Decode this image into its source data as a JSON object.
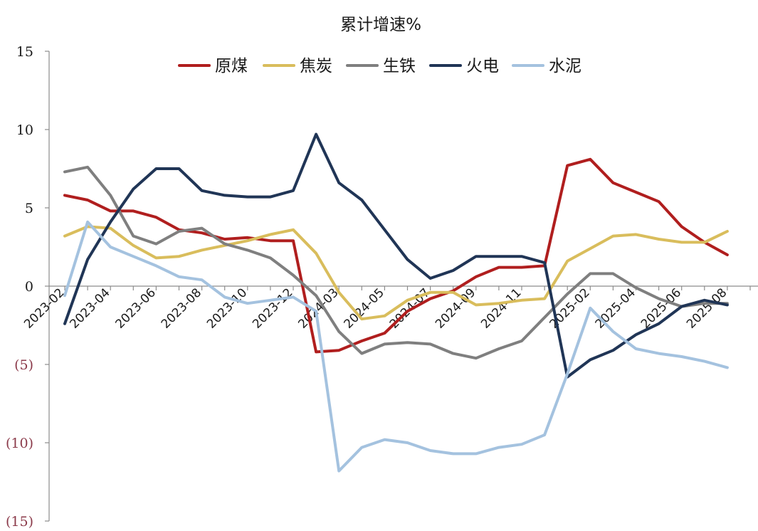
{
  "chart_data": {
    "type": "line",
    "title": "累计增速%",
    "xlabel": "",
    "ylabel": "",
    "ylim": [
      -15,
      15
    ],
    "yticks": [
      15,
      10,
      5,
      0,
      -5,
      -10,
      -15
    ],
    "ytick_labels": [
      "15",
      "10",
      "5",
      "0",
      "(5)",
      "(10)",
      "(15)"
    ],
    "grid": false,
    "legend_position": "top-center",
    "x": [
      "2023-02",
      "2023-03",
      "2023-04",
      "2023-05",
      "2023-06",
      "2023-07",
      "2023-08",
      "2023-09",
      "2023-10",
      "2023-11",
      "2023-12",
      "2024-01",
      "2024-03",
      "2024-04",
      "2024-05",
      "2024-06",
      "2024-07",
      "2024-08",
      "2024-09",
      "2024-10",
      "2024-11",
      "2024-12",
      "2025-01",
      "2025-02",
      "2025-03",
      "2025-04",
      "2025-05",
      "2025-06",
      "2025-07",
      "2025-08",
      "2025-09"
    ],
    "xtick_labels": [
      "2023-02",
      "2023-04",
      "2023-06",
      "2023-08",
      "2023-10",
      "2023-12",
      "2024-03",
      "2024-05",
      "2024-07",
      "2024-09",
      "2024-11",
      "2025-02",
      "2025-04",
      "2025-06",
      "2025-08"
    ],
    "series": [
      {
        "name": "原煤",
        "color": "#b01e1e",
        "values": [
          5.8,
          5.5,
          4.8,
          4.8,
          4.4,
          3.6,
          3.4,
          3.0,
          3.1,
          2.9,
          2.9,
          -4.2,
          -4.1,
          -3.5,
          -3.0,
          -1.6,
          -0.8,
          -0.3,
          0.6,
          1.2,
          1.2,
          1.3,
          7.7,
          8.1,
          6.6,
          6.0,
          5.4,
          3.8,
          2.8,
          2.0,
          null
        ]
      },
      {
        "name": "焦炭",
        "color": "#d9bd5c",
        "values": [
          3.2,
          3.8,
          3.7,
          2.6,
          1.8,
          1.9,
          2.3,
          2.6,
          2.9,
          3.3,
          3.6,
          2.1,
          -0.4,
          -2.1,
          -1.9,
          -0.9,
          -0.4,
          -0.4,
          -1.2,
          -1.1,
          -0.9,
          -0.8,
          1.6,
          2.4,
          3.2,
          3.3,
          3.0,
          2.8,
          2.8,
          3.5,
          null
        ]
      },
      {
        "name": "生铁",
        "color": "#7f7f7f",
        "values": [
          7.3,
          7.6,
          5.8,
          3.2,
          2.7,
          3.5,
          3.7,
          2.7,
          2.3,
          1.8,
          0.7,
          -0.6,
          -2.9,
          -4.3,
          -3.7,
          -3.6,
          -3.7,
          -4.3,
          -4.6,
          -4.0,
          -3.5,
          -2.0,
          -0.5,
          0.8,
          0.8,
          -0.1,
          -0.8,
          -1.3,
          -1.1,
          -1.1,
          null
        ]
      },
      {
        "name": "火电",
        "color": "#203556",
        "values": [
          -2.4,
          1.7,
          4.1,
          6.2,
          7.5,
          7.5,
          6.1,
          5.8,
          5.7,
          5.7,
          6.1,
          9.7,
          6.6,
          5.5,
          3.6,
          1.7,
          0.5,
          1.0,
          1.9,
          1.9,
          1.9,
          1.5,
          -5.8,
          -4.7,
          -4.1,
          -3.1,
          -2.4,
          -1.3,
          -0.9,
          -1.2,
          null
        ]
      },
      {
        "name": "水泥",
        "color": "#a4c2df",
        "values": [
          -0.6,
          4.1,
          2.5,
          1.9,
          1.3,
          0.6,
          0.4,
          -0.7,
          -1.1,
          -0.9,
          -0.7,
          -1.6,
          -11.8,
          -10.3,
          -9.8,
          -10.0,
          -10.5,
          -10.7,
          -10.7,
          -10.3,
          -10.1,
          -9.5,
          -5.6,
          -1.4,
          -2.9,
          -4.0,
          -4.3,
          -4.5,
          -4.8,
          -5.2,
          null
        ]
      }
    ]
  },
  "colors": {
    "axis": "#8c8c8c",
    "positive_tick": "#1a1a1a",
    "negative_tick": "#8b3a4a"
  }
}
